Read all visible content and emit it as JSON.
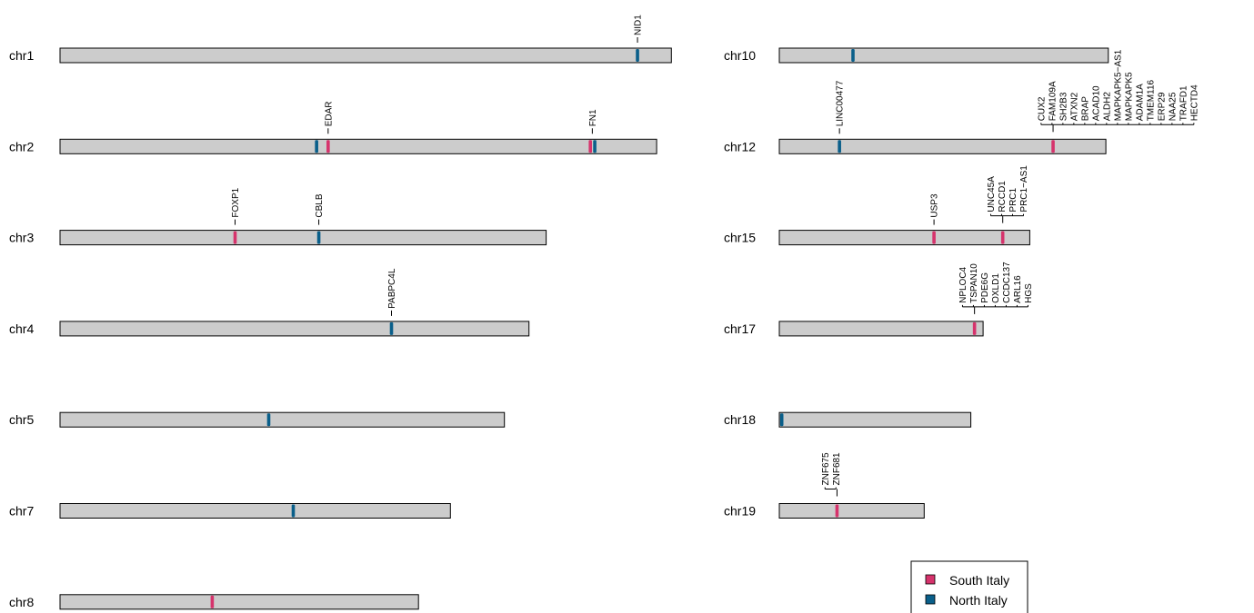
{
  "colors": {
    "south": "#d6336c",
    "north": "#0a5f8a",
    "chromosome_fill": "#cccccc",
    "chromosome_stroke": "#000000"
  },
  "legend": {
    "entries": [
      {
        "label": "South Italy",
        "group": "south"
      },
      {
        "label": "North Italy",
        "group": "north"
      }
    ]
  },
  "chromosomes": [
    {
      "name": "chr1",
      "length_mb": 249,
      "markers": [
        {
          "pos_mb": 235.2,
          "group": "north"
        }
      ],
      "labels": [
        {
          "pos_mb": 235.2,
          "genes": [
            "NID1"
          ]
        }
      ]
    },
    {
      "name": "chr2",
      "length_mb": 243,
      "markers": [
        {
          "pos_mb": 104.5,
          "group": "north"
        },
        {
          "pos_mb": 109.2,
          "group": "south"
        },
        {
          "pos_mb": 216.0,
          "group": "south"
        },
        {
          "pos_mb": 217.8,
          "group": "north"
        }
      ],
      "labels": [
        {
          "pos_mb": 109.2,
          "genes": [
            "EDAR"
          ]
        },
        {
          "pos_mb": 216.8,
          "genes": [
            "FN1"
          ]
        }
      ]
    },
    {
      "name": "chr3",
      "length_mb": 198,
      "markers": [
        {
          "pos_mb": 71.3,
          "group": "south"
        },
        {
          "pos_mb": 105.4,
          "group": "north"
        }
      ],
      "labels": [
        {
          "pos_mb": 71.3,
          "genes": [
            "FOXP1"
          ]
        },
        {
          "pos_mb": 105.4,
          "genes": [
            "CBLB"
          ]
        }
      ]
    },
    {
      "name": "chr4",
      "length_mb": 191,
      "markers": [
        {
          "pos_mb": 135.0,
          "group": "north"
        }
      ],
      "labels": [
        {
          "pos_mb": 135.0,
          "genes": [
            "PABPC4L"
          ]
        }
      ]
    },
    {
      "name": "chr5",
      "length_mb": 181,
      "markers": [
        {
          "pos_mb": 85.0,
          "group": "north"
        }
      ],
      "labels": []
    },
    {
      "name": "chr7",
      "length_mb": 159,
      "markers": [
        {
          "pos_mb": 95.0,
          "group": "north"
        }
      ],
      "labels": []
    },
    {
      "name": "chr8",
      "length_mb": 146,
      "markers": [
        {
          "pos_mb": 62.0,
          "group": "south"
        }
      ],
      "labels": []
    },
    {
      "name": "chr10",
      "length_mb": 134,
      "markers": [
        {
          "pos_mb": 30.0,
          "group": "north"
        }
      ],
      "labels": []
    },
    {
      "name": "chr12",
      "length_mb": 133,
      "markers": [
        {
          "pos_mb": 24.5,
          "group": "north"
        },
        {
          "pos_mb": 111.5,
          "group": "south"
        }
      ],
      "labels": [
        {
          "pos_mb": 24.5,
          "genes": [
            "LINC00477"
          ]
        },
        {
          "pos_mb": 111.5,
          "genes": [
            "CUX2",
            "FAM109A",
            "SH2B3",
            "ATXN2",
            "BRAP",
            "ACAD10",
            "ALDH2",
            "MAPKAPK5−AS1",
            "MAPKAPK5",
            "ADAM1A",
            "TMEM116",
            "ERP29",
            "NAA25",
            "TRAFD1",
            "HECTD4"
          ]
        }
      ]
    },
    {
      "name": "chr15",
      "length_mb": 102,
      "markers": [
        {
          "pos_mb": 63.0,
          "group": "south"
        },
        {
          "pos_mb": 91.0,
          "group": "south"
        }
      ],
      "labels": [
        {
          "pos_mb": 63.0,
          "genes": [
            "USP3"
          ]
        },
        {
          "pos_mb": 91.0,
          "genes": [
            "UNC45A",
            "RCCD1",
            "PRC1",
            "PRC1−AS1"
          ]
        }
      ]
    },
    {
      "name": "chr17",
      "length_mb": 83,
      "markers": [
        {
          "pos_mb": 79.5,
          "group": "south"
        }
      ],
      "labels": [
        {
          "pos_mb": 79.5,
          "genes": [
            "NPLOC4",
            "TSPAN10",
            "PDE6G",
            "OXLD1",
            "CCDC137",
            "ARL16",
            "HGS"
          ]
        }
      ]
    },
    {
      "name": "chr18",
      "length_mb": 78,
      "markers": [
        {
          "pos_mb": 1.0,
          "group": "north"
        }
      ],
      "labels": []
    },
    {
      "name": "chr19",
      "length_mb": 59,
      "markers": [
        {
          "pos_mb": 23.5,
          "group": "south"
        }
      ],
      "labels": [
        {
          "pos_mb": 23.5,
          "genes": [
            "ZNF675",
            "ZNF681"
          ]
        }
      ]
    }
  ]
}
